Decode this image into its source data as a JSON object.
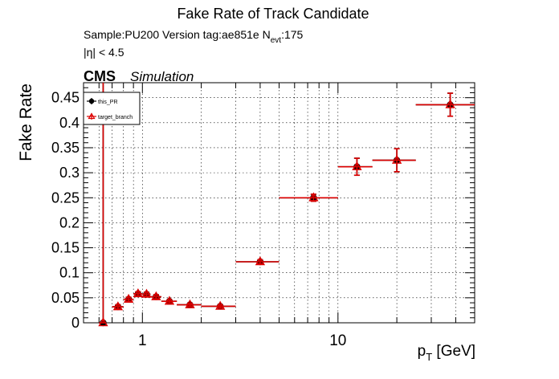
{
  "chart_data": {
    "type": "scatter",
    "title": "Fake Rate of Track Candidate",
    "subtitle_sample": "Sample:PU200   Version tag:ae851e  N",
    "subtitle_nevt_sub": "evt",
    "subtitle_nevt_val": ":175",
    "eta_text": "|η| < 4.5",
    "cms_label": "CMS",
    "simulation_label": "Simulation",
    "xlabel_main": "p",
    "xlabel_sub": "T",
    "xlabel_unit": " [GeV]",
    "ylabel": "Fake Rate",
    "x_scale": "log",
    "xlim": [
      0.5,
      50
    ],
    "ylim": [
      0,
      0.48
    ],
    "grid": true,
    "legend_position": "top-left",
    "x_tick_labels": [
      "1",
      "10"
    ],
    "y_tick_labels": [
      "0",
      "0.05",
      "0.1",
      "0.15",
      "0.2",
      "0.25",
      "0.3",
      "0.35",
      "0.4",
      "0.45"
    ],
    "y_ticks": [
      0,
      0.05,
      0.1,
      0.15,
      0.2,
      0.25,
      0.3,
      0.35,
      0.4,
      0.45
    ],
    "series": [
      {
        "name": "this_PR",
        "color": "#000000",
        "marker": "circle",
        "points": [
          {
            "x": 0.63,
            "xlo": 0.6,
            "xhi": 0.65,
            "y": 0.0,
            "err": 0.5
          },
          {
            "x": 0.75,
            "xlo": 0.7,
            "xhi": 0.8,
            "y": 0.032,
            "err": 0.004
          },
          {
            "x": 0.85,
            "xlo": 0.8,
            "xhi": 0.9,
            "y": 0.047,
            "err": 0.004
          },
          {
            "x": 0.95,
            "xlo": 0.9,
            "xhi": 1.0,
            "y": 0.058,
            "err": 0.004
          },
          {
            "x": 1.05,
            "xlo": 1.0,
            "xhi": 1.1,
            "y": 0.057,
            "err": 0.004
          },
          {
            "x": 1.175,
            "xlo": 1.1,
            "xhi": 1.25,
            "y": 0.052,
            "err": 0.004
          },
          {
            "x": 1.375,
            "xlo": 1.25,
            "xhi": 1.5,
            "y": 0.043,
            "err": 0.003
          },
          {
            "x": 1.75,
            "xlo": 1.5,
            "xhi": 2.0,
            "y": 0.036,
            "err": 0.003
          },
          {
            "x": 2.5,
            "xlo": 2.0,
            "xhi": 3.0,
            "y": 0.033,
            "err": 0.003
          },
          {
            "x": 4.0,
            "xlo": 3.0,
            "xhi": 5.0,
            "y": 0.122,
            "err": 0.004
          },
          {
            "x": 7.5,
            "xlo": 5.0,
            "xhi": 10.0,
            "y": 0.25,
            "err": 0.007
          },
          {
            "x": 12.5,
            "xlo": 10.0,
            "xhi": 15.0,
            "y": 0.312,
            "err": 0.017
          },
          {
            "x": 20.0,
            "xlo": 15.0,
            "xhi": 25.0,
            "y": 0.325,
            "err": 0.023
          },
          {
            "x": 37.5,
            "xlo": 25.0,
            "xhi": 50.0,
            "y": 0.436,
            "err": 0.023
          }
        ]
      },
      {
        "name": "target_branch",
        "color": "#dd0000",
        "marker": "triangle",
        "points": [
          {
            "x": 0.63,
            "xlo": 0.6,
            "xhi": 0.65,
            "y": 0.0,
            "err": 0.5
          },
          {
            "x": 0.75,
            "xlo": 0.7,
            "xhi": 0.8,
            "y": 0.032,
            "err": 0.004
          },
          {
            "x": 0.85,
            "xlo": 0.8,
            "xhi": 0.9,
            "y": 0.047,
            "err": 0.004
          },
          {
            "x": 0.95,
            "xlo": 0.9,
            "xhi": 1.0,
            "y": 0.058,
            "err": 0.004
          },
          {
            "x": 1.05,
            "xlo": 1.0,
            "xhi": 1.1,
            "y": 0.057,
            "err": 0.004
          },
          {
            "x": 1.175,
            "xlo": 1.1,
            "xhi": 1.25,
            "y": 0.052,
            "err": 0.004
          },
          {
            "x": 1.375,
            "xlo": 1.25,
            "xhi": 1.5,
            "y": 0.043,
            "err": 0.003
          },
          {
            "x": 1.75,
            "xlo": 1.5,
            "xhi": 2.0,
            "y": 0.036,
            "err": 0.003
          },
          {
            "x": 2.5,
            "xlo": 2.0,
            "xhi": 3.0,
            "y": 0.033,
            "err": 0.003
          },
          {
            "x": 4.0,
            "xlo": 3.0,
            "xhi": 5.0,
            "y": 0.122,
            "err": 0.004
          },
          {
            "x": 7.5,
            "xlo": 5.0,
            "xhi": 10.0,
            "y": 0.25,
            "err": 0.007
          },
          {
            "x": 12.5,
            "xlo": 10.0,
            "xhi": 15.0,
            "y": 0.312,
            "err": 0.017
          },
          {
            "x": 20.0,
            "xlo": 15.0,
            "xhi": 25.0,
            "y": 0.325,
            "err": 0.023
          },
          {
            "x": 37.5,
            "xlo": 25.0,
            "xhi": 50.0,
            "y": 0.436,
            "err": 0.023
          }
        ]
      }
    ]
  }
}
